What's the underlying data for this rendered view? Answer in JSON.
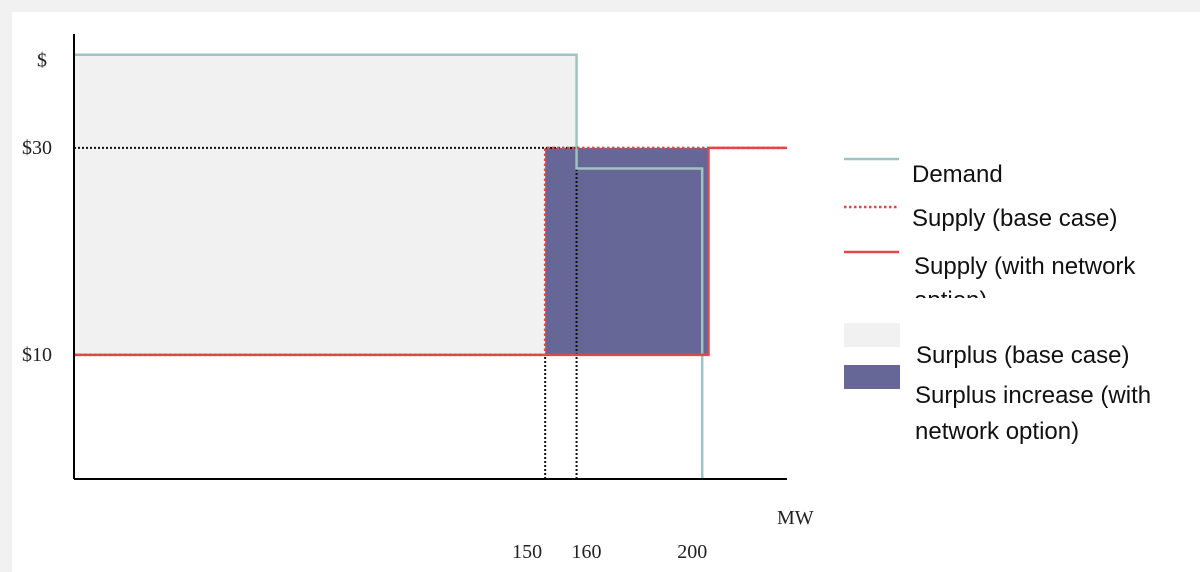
{
  "chart_data": {
    "type": "line",
    "title": "",
    "xlabel": "MW",
    "ylabel": "$",
    "x_ticks": [
      {
        "value": 150,
        "label": "150"
      },
      {
        "value": 160,
        "label": "160"
      },
      {
        "value": 200,
        "label": "200"
      }
    ],
    "y_ticks": [
      {
        "value": 30,
        "label": "$30"
      },
      {
        "value": 10,
        "label": "$10"
      }
    ],
    "xlim": [
      0,
      227
    ],
    "ylim": [
      0,
      43
    ],
    "series": [
      {
        "name": "Demand",
        "style": "solid",
        "color": "#9fc2c2",
        "points": [
          [
            0,
            41
          ],
          [
            160,
            41
          ],
          [
            160,
            30
          ],
          [
            200,
            30
          ],
          [
            200,
            0
          ]
        ]
      },
      {
        "name": "Supply (base case)",
        "style": "dotted",
        "color": "#e04848",
        "points": [
          [
            0,
            12
          ],
          [
            150,
            12
          ],
          [
            150,
            32
          ],
          [
            227,
            32
          ]
        ]
      },
      {
        "name": "Supply (with network option)",
        "style": "solid",
        "color": "#e04848",
        "points": [
          [
            0,
            12
          ],
          [
            202,
            12
          ],
          [
            202,
            32
          ],
          [
            227,
            32
          ]
        ]
      }
    ],
    "areas": [
      {
        "name": "Surplus (base case)",
        "color": "#f1f1f1",
        "x": [
          0,
          160
        ],
        "y": [
          12,
          41
        ]
      },
      {
        "name": "Surplus increase (with network option)",
        "color": "#666697",
        "x": [
          150,
          202
        ],
        "y": [
          12,
          32
        ]
      }
    ],
    "reference_lines": [
      {
        "orientation": "horizontal",
        "y": 32,
        "x": [
          0,
          160
        ],
        "style": "dotted"
      },
      {
        "orientation": "vertical",
        "x": 150,
        "y": [
          0,
          12
        ],
        "style": "dotted"
      },
      {
        "orientation": "vertical",
        "x": 160,
        "y": [
          0,
          32
        ],
        "style": "dotted"
      }
    ],
    "legend": {
      "position": "right",
      "items": [
        {
          "label": "Demand",
          "kind": "line-solid",
          "color": "#9fc2c2"
        },
        {
          "label": "Supply (base case)",
          "kind": "line-dotted",
          "color": "#e04848"
        },
        {
          "label": "Supply (with network option)",
          "kind": "line-solid",
          "color": "#e04848"
        },
        {
          "label": "Surplus (base case)",
          "kind": "area",
          "color": "#f1f1f1"
        },
        {
          "label": "Surplus increase (with network option)",
          "kind": "area",
          "color": "#666697"
        }
      ]
    }
  }
}
